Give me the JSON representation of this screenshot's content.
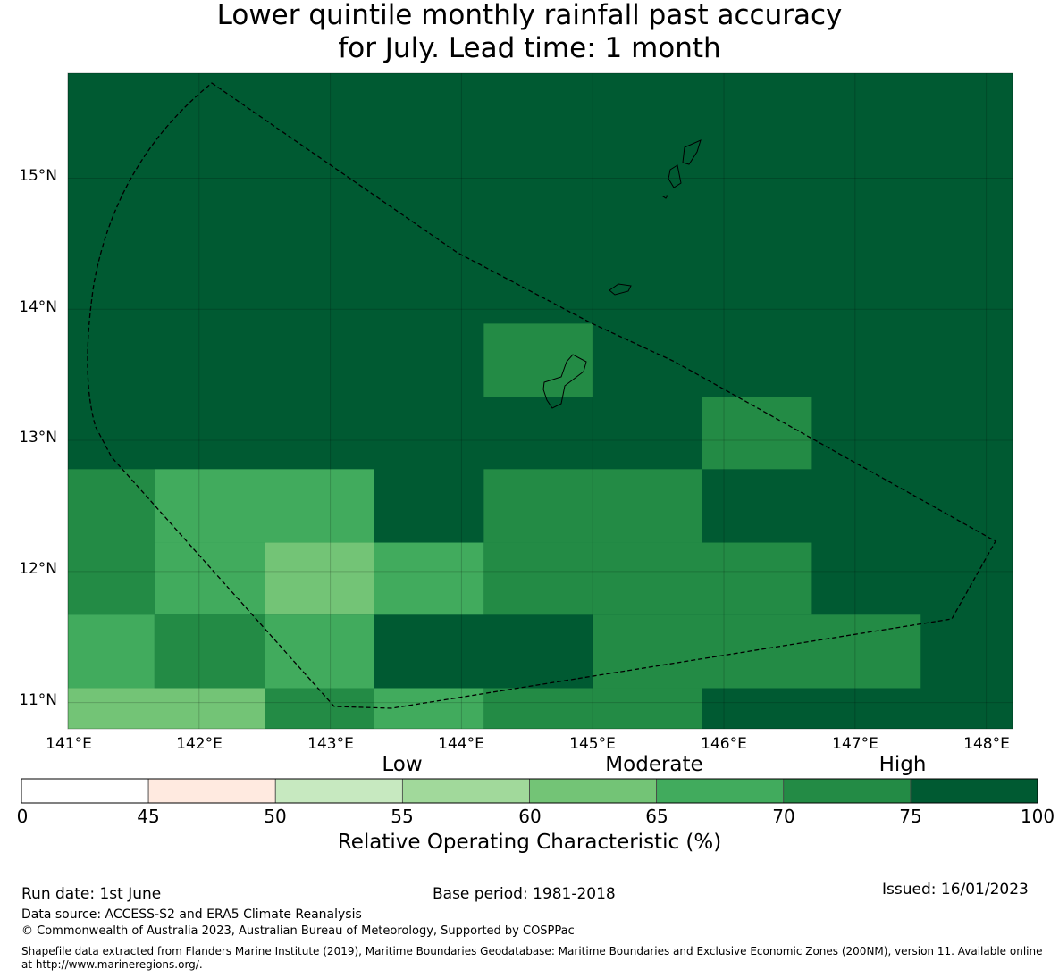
{
  "title_line1": "Lower quintile monthly rainfall past accuracy",
  "title_line2": "for July. Lead time: 1 month",
  "colors": {
    "c45": "#ffeae0",
    "c55": "#c7e9c0",
    "c60": "#a1d99b",
    "c65": "#73c476",
    "c70": "#41ab5d",
    "c75": "#238b45",
    "c100": "#005a32"
  },
  "chart_data": {
    "type": "heatmap",
    "title": "Lower quintile monthly rainfall past accuracy for July. Lead time: 1 month",
    "x_ticks": [
      "141°E",
      "142°E",
      "143°E",
      "144°E",
      "145°E",
      "146°E",
      "147°E",
      "148°E"
    ],
    "y_ticks": [
      "15°N",
      "14°N",
      "13°N",
      "12°N",
      "11°N"
    ],
    "xlim": [
      141.0,
      148.2
    ],
    "ylim": [
      10.8,
      15.8
    ],
    "grid": true,
    "background_class": "75-100",
    "cells": [
      {
        "lon": [
          141.0,
          141.66
        ],
        "lat": [
          11.67,
          12.78
        ],
        "class": "70-75"
      },
      {
        "lon": [
          141.66,
          143.33
        ],
        "lat": [
          12.22,
          12.78
        ],
        "class": "65-70"
      },
      {
        "lon": [
          141.66,
          142.5
        ],
        "lat": [
          11.67,
          12.22
        ],
        "class": "65-70"
      },
      {
        "lon": [
          142.5,
          143.33
        ],
        "lat": [
          11.67,
          12.22
        ],
        "class": "60-65"
      },
      {
        "lon": [
          143.33,
          144.17
        ],
        "lat": [
          11.67,
          12.22
        ],
        "class": "65-70"
      },
      {
        "lon": [
          141.0,
          141.66
        ],
        "lat": [
          11.11,
          11.67
        ],
        "class": "65-70"
      },
      {
        "lon": [
          141.66,
          142.5
        ],
        "lat": [
          11.11,
          11.67
        ],
        "class": "70-75"
      },
      {
        "lon": [
          142.5,
          143.33
        ],
        "lat": [
          11.11,
          11.67
        ],
        "class": "65-70"
      },
      {
        "lon": [
          141.0,
          142.5
        ],
        "lat": [
          10.8,
          11.11
        ],
        "class": "60-65"
      },
      {
        "lon": [
          142.5,
          143.33
        ],
        "lat": [
          10.8,
          11.11
        ],
        "class": "70-75"
      },
      {
        "lon": [
          143.33,
          144.17
        ],
        "lat": [
          10.8,
          11.11
        ],
        "class": "65-70"
      },
      {
        "lon": [
          144.17,
          145.83
        ],
        "lat": [
          10.8,
          11.11
        ],
        "class": "70-75"
      },
      {
        "lon": [
          144.17,
          145.83
        ],
        "lat": [
          12.22,
          12.78
        ],
        "class": "70-75"
      },
      {
        "lon": [
          144.17,
          146.67
        ],
        "lat": [
          11.67,
          12.22
        ],
        "class": "70-75"
      },
      {
        "lon": [
          145.0,
          147.5
        ],
        "lat": [
          11.11,
          11.67
        ],
        "class": "70-75"
      },
      {
        "lon": [
          144.17,
          145.0
        ],
        "lat": [
          13.33,
          13.89
        ],
        "class": "70-75"
      },
      {
        "lon": [
          145.83,
          146.67
        ],
        "lat": [
          12.78,
          13.33
        ],
        "class": "70-75"
      }
    ]
  },
  "colorbar": {
    "labels": [
      "0",
      "45",
      "50",
      "55",
      "60",
      "65",
      "70",
      "75",
      "100"
    ],
    "categories": [
      "Low",
      "Moderate",
      "High"
    ],
    "title": "Relative Operating Characteristic (%)"
  },
  "footer": {
    "run_date": "Run date: 1st June",
    "base_period": "Base period: 1981-2018",
    "issued": "Issued: 16/01/2023",
    "data_source": "Data source: ACCESS-S2 and ERA5 Climate Reanalysis",
    "copyright": "© Commonwealth of Australia 2023, Australian Bureau of Meteorology, Supported by COSPPac",
    "shapefile_line1": "Shapefile data extracted from Flanders Marine Institute (2019), Maritime Boundaries Geodatabase: Maritime Boundaries and Exclusive Economic Zones (200NM), version 11. Available online",
    "shapefile_line2": "at http://www.marineregions.org/."
  }
}
